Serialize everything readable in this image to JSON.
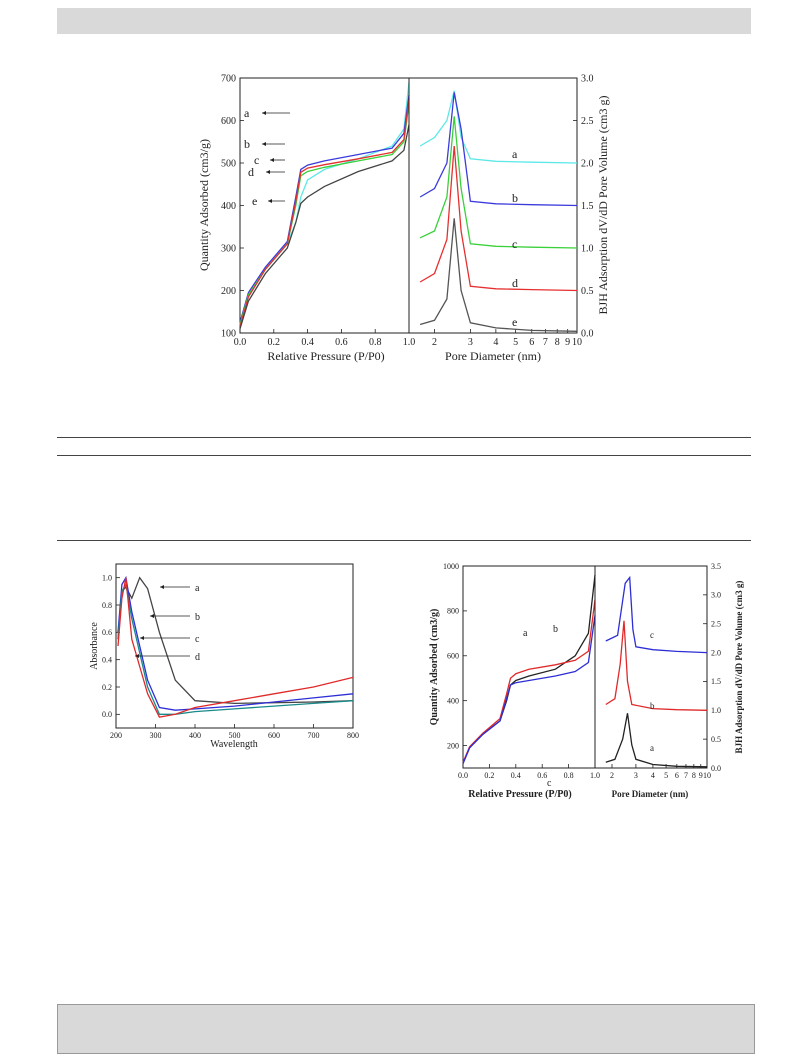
{
  "figures": {
    "fig_top": {
      "chart_data": [
        {
          "type": "line",
          "xlabel": "Relative Pressure (P/P0)",
          "ylabel": "Quantity Adsorbed (cm3/g)",
          "xlim": [
            0.0,
            1.0
          ],
          "ylim": [
            100,
            700
          ],
          "xticks": [
            "0.0",
            "0.2",
            "0.4",
            "0.6",
            "0.8",
            "1.0"
          ],
          "yticks": [
            "100",
            "200",
            "300",
            "400",
            "500",
            "600",
            "700"
          ],
          "grid": false,
          "annotations": [
            "a",
            "b",
            "c",
            "d",
            "e"
          ],
          "series": [
            {
              "name": "a",
              "color": "#5de8e8",
              "x": [
                0,
                0.05,
                0.15,
                0.28,
                0.33,
                0.36,
                0.4,
                0.5,
                0.7,
                0.9,
                0.97,
                1.0
              ],
              "y": [
                120,
                185,
                250,
                310,
                360,
                420,
                460,
                485,
                510,
                540,
                580,
                690
              ]
            },
            {
              "name": "b",
              "color": "#3b3bdc",
              "x": [
                0,
                0.05,
                0.15,
                0.28,
                0.33,
                0.36,
                0.4,
                0.5,
                0.7,
                0.9,
                0.97,
                1.0
              ],
              "y": [
                125,
                195,
                255,
                315,
                420,
                485,
                495,
                505,
                520,
                535,
                570,
                660
              ]
            },
            {
              "name": "c",
              "color": "#3ad13a",
              "x": [
                0,
                0.05,
                0.15,
                0.28,
                0.33,
                0.36,
                0.4,
                0.5,
                0.7,
                0.9,
                0.97,
                1.0
              ],
              "y": [
                120,
                190,
                250,
                310,
                400,
                470,
                480,
                490,
                505,
                520,
                550,
                640
              ]
            },
            {
              "name": "d",
              "color": "#e53030",
              "x": [
                0,
                0.05,
                0.15,
                0.28,
                0.33,
                0.36,
                0.4,
                0.5,
                0.7,
                0.9,
                0.97,
                1.0
              ],
              "y": [
                115,
                185,
                250,
                310,
                410,
                478,
                488,
                496,
                510,
                525,
                555,
                650
              ]
            },
            {
              "name": "e",
              "color": "#444444",
              "x": [
                0,
                0.05,
                0.15,
                0.28,
                0.33,
                0.36,
                0.4,
                0.5,
                0.7,
                0.9,
                0.97,
                1.0
              ],
              "y": [
                110,
                175,
                240,
                300,
                360,
                405,
                420,
                445,
                480,
                505,
                530,
                590
              ]
            }
          ]
        },
        {
          "type": "line",
          "xlabel": "Pore Diameter (nm)",
          "ylabel": "BJH Adsorption dV/dD Pore Volume (cm3 g)",
          "xscale": "log",
          "xlim": [
            1.5,
            10
          ],
          "ylim": [
            0.0,
            3.0
          ],
          "xticks": [
            "2",
            "3",
            "4",
            "5",
            "6",
            "7",
            "8",
            "9",
            "10"
          ],
          "yticks": [
            "0.0",
            "0.5",
            "1.0",
            "1.5",
            "2.0",
            "2.5",
            "3.0"
          ],
          "grid": false,
          "annotations": [
            "a",
            "b",
            "c",
            "d",
            "e"
          ],
          "series": [
            {
              "name": "a",
              "color": "#5de8e8",
              "x": [
                1.7,
                2.0,
                2.3,
                2.5,
                2.7,
                3.0,
                4,
                6,
                10
              ],
              "y": [
                2.2,
                2.3,
                2.5,
                2.85,
                2.3,
                2.05,
                2.02,
                2.01,
                2.0
              ]
            },
            {
              "name": "b",
              "color": "#3b3bdc",
              "x": [
                1.7,
                2.0,
                2.3,
                2.5,
                2.7,
                3.0,
                4,
                6,
                10
              ],
              "y": [
                1.6,
                1.7,
                2.0,
                2.83,
                2.4,
                1.55,
                1.52,
                1.51,
                1.5
              ]
            },
            {
              "name": "c",
              "color": "#3ad13a",
              "x": [
                1.7,
                2.0,
                2.3,
                2.5,
                2.7,
                3.0,
                4,
                6,
                10
              ],
              "y": [
                1.12,
                1.2,
                1.6,
                2.55,
                1.7,
                1.05,
                1.02,
                1.01,
                1.0
              ]
            },
            {
              "name": "d",
              "color": "#e53030",
              "x": [
                1.7,
                2.0,
                2.3,
                2.5,
                2.7,
                3.0,
                4,
                6,
                10
              ],
              "y": [
                0.6,
                0.7,
                1.1,
                2.2,
                1.2,
                0.55,
                0.52,
                0.51,
                0.5
              ]
            },
            {
              "name": "e",
              "color": "#555555",
              "x": [
                1.7,
                2.0,
                2.3,
                2.5,
                2.7,
                3.0,
                4,
                6,
                10
              ],
              "y": [
                0.1,
                0.15,
                0.4,
                1.35,
                0.5,
                0.12,
                0.06,
                0.03,
                0.02
              ]
            }
          ]
        }
      ]
    },
    "fig_bl": {
      "chart_data": {
        "type": "line",
        "xlabel": "Wavelength",
        "ylabel": "Absorbance",
        "xlim": [
          200,
          800
        ],
        "ylim": [
          -0.1,
          1.1
        ],
        "xticks": [
          "200",
          "300",
          "400",
          "500",
          "600",
          "700",
          "800"
        ],
        "yticks": [
          "0.0",
          "0.2",
          "0.4",
          "0.6",
          "0.8",
          "1.0"
        ],
        "grid": false,
        "annotations": [
          "a",
          "b",
          "c",
          "d"
        ],
        "series": [
          {
            "name": "a",
            "color": "#444444",
            "x": [
              205,
              215,
              225,
              240,
              260,
              280,
              310,
              350,
              400,
              500,
              600,
              700,
              800
            ],
            "y": [
              0.55,
              0.9,
              0.93,
              0.85,
              1.0,
              0.92,
              0.6,
              0.25,
              0.1,
              0.08,
              0.085,
              0.09,
              0.1
            ]
          },
          {
            "name": "b",
            "color": "#2e2ed6",
            "x": [
              205,
              215,
              225,
              240,
              260,
              280,
              310,
              350,
              400,
              500,
              600,
              700,
              800
            ],
            "y": [
              0.6,
              0.95,
              1.0,
              0.75,
              0.5,
              0.25,
              0.05,
              0.03,
              0.04,
              0.06,
              0.09,
              0.12,
              0.15
            ]
          },
          {
            "name": "c",
            "color": "#1a8a8a",
            "x": [
              205,
              215,
              225,
              240,
              260,
              280,
              310,
              350,
              400,
              500,
              600,
              700,
              800
            ],
            "y": [
              0.55,
              0.9,
              0.95,
              0.7,
              0.45,
              0.2,
              0.0,
              0.0,
              0.02,
              0.04,
              0.06,
              0.08,
              0.1
            ]
          },
          {
            "name": "d",
            "color": "#e02a2a",
            "x": [
              205,
              215,
              225,
              240,
              260,
              280,
              310,
              350,
              400,
              500,
              600,
              700,
              800
            ],
            "y": [
              0.5,
              0.85,
              1.0,
              0.55,
              0.35,
              0.15,
              -0.02,
              0.0,
              0.05,
              0.1,
              0.15,
              0.2,
              0.27
            ]
          }
        ]
      }
    },
    "fig_br": {
      "chart_data": [
        {
          "type": "line",
          "xlabel": "Relative Pressure (P/P0)",
          "ylabel": "Quantity Adsorbed (cm3/g)",
          "xlim": [
            0.0,
            1.0
          ],
          "ylim": [
            100,
            1000
          ],
          "xticks": [
            "0.0",
            "0.2",
            "0.4",
            "0.6",
            "0.8",
            "1.0"
          ],
          "yticks": [
            "200",
            "400",
            "600",
            "800",
            "1000"
          ],
          "grid": false,
          "annotations": [
            "a",
            "b",
            "c"
          ],
          "series": [
            {
              "name": "a",
              "color": "#222222",
              "x": [
                0,
                0.05,
                0.15,
                0.28,
                0.33,
                0.36,
                0.4,
                0.5,
                0.7,
                0.85,
                0.95,
                1.0
              ],
              "y": [
                120,
                190,
                250,
                310,
                400,
                470,
                490,
                510,
                540,
                600,
                700,
                960
              ]
            },
            {
              "name": "b",
              "color": "#e02a2a",
              "x": [
                0,
                0.05,
                0.15,
                0.28,
                0.33,
                0.36,
                0.4,
                0.5,
                0.7,
                0.85,
                0.95,
                1.0
              ],
              "y": [
                125,
                195,
                255,
                320,
                430,
                500,
                520,
                540,
                560,
                580,
                620,
                850
              ]
            },
            {
              "name": "c",
              "color": "#2e2ed6",
              "x": [
                0,
                0.05,
                0.15,
                0.28,
                0.33,
                0.36,
                0.4,
                0.5,
                0.7,
                0.85,
                0.95,
                1.0
              ],
              "y": [
                120,
                190,
                250,
                310,
                410,
                470,
                480,
                490,
                510,
                530,
                570,
                780
              ]
            }
          ]
        },
        {
          "type": "line",
          "xlabel": "Pore Diameter (nm)",
          "ylabel": "BJH Adsorption dV/dD Pore Volume (cm3 g)",
          "xscale": "log",
          "xlim": [
            1.5,
            10
          ],
          "ylim": [
            0.0,
            3.5
          ],
          "xticks": [
            "2",
            "3",
            "4",
            "5",
            "6",
            "7",
            "8",
            "9",
            "10"
          ],
          "yticks": [
            "0.0",
            "0.5",
            "1.0",
            "1.5",
            "2.0",
            "2.5",
            "3.0",
            "3.5"
          ],
          "grid": false,
          "annotations": [
            "a",
            "b",
            "c"
          ],
          "series": [
            {
              "name": "a",
              "color": "#222222",
              "x": [
                1.8,
                2.1,
                2.4,
                2.6,
                2.8,
                3.0,
                4,
                6,
                10
              ],
              "y": [
                0.1,
                0.15,
                0.5,
                0.95,
                0.4,
                0.15,
                0.06,
                0.03,
                0.02
              ]
            },
            {
              "name": "b",
              "color": "#e02a2a",
              "x": [
                1.8,
                2.1,
                2.3,
                2.45,
                2.6,
                2.8,
                4,
                6,
                10
              ],
              "y": [
                1.1,
                1.2,
                1.8,
                2.55,
                1.5,
                1.1,
                1.03,
                1.01,
                1.0
              ]
            },
            {
              "name": "c",
              "color": "#2e2ed6",
              "x": [
                1.8,
                2.2,
                2.5,
                2.7,
                2.85,
                3.0,
                4,
                6,
                10
              ],
              "y": [
                2.2,
                2.3,
                3.2,
                3.3,
                2.4,
                2.1,
                2.05,
                2.02,
                2.0
              ]
            }
          ]
        }
      ]
    }
  }
}
